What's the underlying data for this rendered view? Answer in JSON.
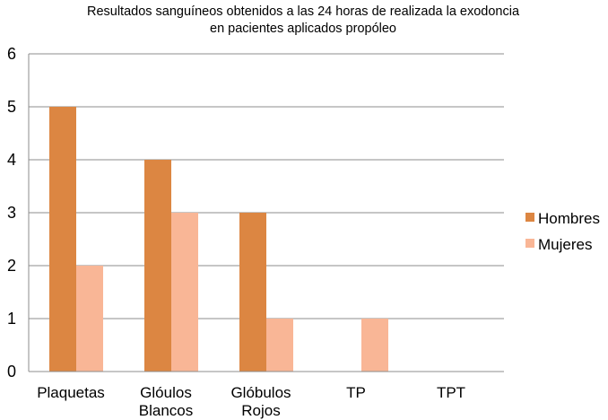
{
  "chart_data": {
    "type": "bar",
    "title": "Resultados sanguíneos obtenidos a las 24 horas de realizada la exodoncia en pacientes aplicados propóleo",
    "title_lines": [
      "Resultados sanguíneos obtenidos a las 24 horas de realizada la exodoncia",
      "en pacientes aplicados propóleo"
    ],
    "categories": [
      "Plaquetas",
      "Glóulos Blancos",
      "Glóbulos Rojos",
      "TP",
      "TPT"
    ],
    "category_lines": [
      [
        "Plaquetas"
      ],
      [
        "Glóulos",
        "Blancos"
      ],
      [
        "Glóbulos",
        "Rojos"
      ],
      [
        "TP"
      ],
      [
        "TPT"
      ]
    ],
    "series": [
      {
        "name": "Hombres",
        "values": [
          5,
          4,
          3,
          0,
          0
        ],
        "color": "#DC8642"
      },
      {
        "name": "Mujeres",
        "values": [
          2,
          3,
          1,
          1,
          0
        ],
        "color": "#F9B696"
      }
    ],
    "xlabel": "",
    "ylabel": "",
    "ylim": [
      0,
      6
    ],
    "yticks": [
      "0",
      "1",
      "2",
      "3",
      "4",
      "5",
      "6"
    ],
    "grid": true,
    "legend_position": "right"
  }
}
